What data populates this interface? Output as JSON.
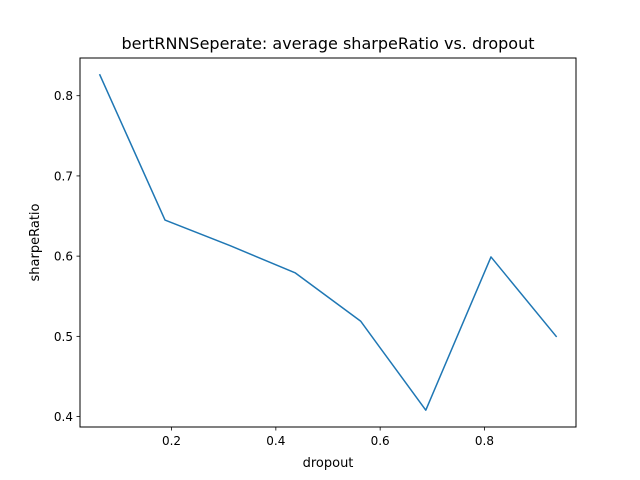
{
  "chart_data": {
    "type": "line",
    "title": "bertRNNSeperate: average sharpeRatio vs. dropout",
    "xlabel": "dropout",
    "ylabel": "sharpeRatio",
    "xlim": [
      0.0245,
      0.9755
    ],
    "ylim": [
      0.387,
      0.847
    ],
    "xticks": [
      0.2,
      0.4,
      0.6,
      0.8
    ],
    "xtick_labels": [
      "0.2",
      "0.4",
      "0.6",
      "0.8"
    ],
    "yticks": [
      0.4,
      0.5,
      0.6,
      0.7,
      0.8
    ],
    "ytick_labels": [
      "0.4",
      "0.5",
      "0.6",
      "0.7",
      "0.8"
    ],
    "grid": false,
    "series": [
      {
        "color": "#1f77b4",
        "x": [
          0.0625,
          0.1875,
          0.3125,
          0.4375,
          0.5625,
          0.6875,
          0.8125,
          0.9375
        ],
        "y": [
          0.826,
          0.645,
          0.613,
          0.579,
          0.519,
          0.408,
          0.599,
          0.5
        ]
      }
    ]
  }
}
